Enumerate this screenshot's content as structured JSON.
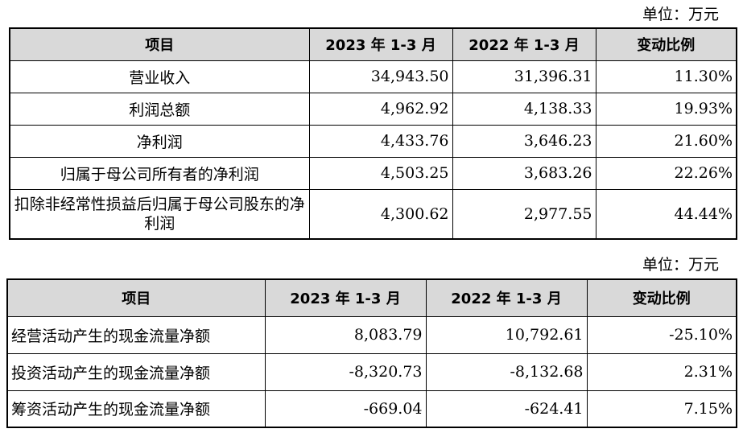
{
  "table1": {
    "unit_label": "单位：万元",
    "headers": [
      "项目",
      "2023 年 1-3 月",
      "2022 年 1-3 月",
      "变动比例"
    ],
    "rows": [
      [
        "营业收入",
        "34,943.50",
        "31,396.31",
        "11.30%"
      ],
      [
        "利润总额",
        "4,962.92",
        "4,138.33",
        "19.93%"
      ],
      [
        "净利润",
        "4,433.76",
        "3,646.23",
        "21.60%"
      ],
      [
        "归属于母公司所有者的净利润",
        "4,503.25",
        "3,683.26",
        "22.26%"
      ],
      [
        "扣除非经常性损益后归属于母公司股东的净利润",
        "4,300.62",
        "2,977.55",
        "44.44%"
      ]
    ]
  },
  "table2": {
    "unit_label": "单位：万元",
    "headers": [
      "项目",
      "2023 年 1-3 月",
      "2022 年 1-3 月",
      "变动比例"
    ],
    "rows": [
      [
        "经营活动产生的现金流量净额",
        "8,083.79",
        "10,792.61",
        "-25.10%"
      ],
      [
        "投资活动产生的现金流量净额",
        "-8,320.73",
        "-8,132.68",
        "2.31%"
      ],
      [
        "筹资活动产生的现金流量净额",
        "-669.04",
        "-624.41",
        "7.15%"
      ]
    ]
  }
}
